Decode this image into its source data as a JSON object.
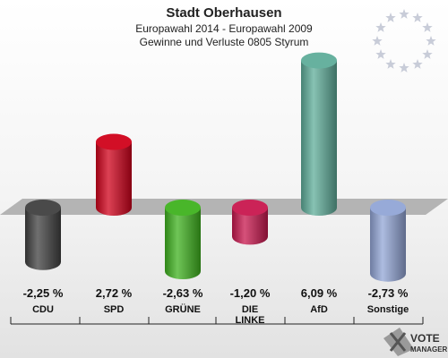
{
  "header": {
    "title": "Stadt Oberhausen",
    "subtitle": "Europawahl 2014 - Europawahl 2009",
    "subtitle2": "Gewinne und Verluste 0805 Styrum"
  },
  "logo": {
    "line1": "VOTE",
    "line2": "MANAGER",
    "icon": "ballot-x-icon"
  },
  "eu_flag": {
    "icon": "eu-stars-icon",
    "star_color": "#c8ccd8"
  },
  "chart_data": {
    "type": "bar",
    "title": "Gewinne und Verluste",
    "categories": [
      "CDU",
      "SPD",
      "GRÜNE",
      "DIE LINKE",
      "AfD",
      "Sonstige"
    ],
    "category_lines": [
      [
        "CDU"
      ],
      [
        "SPD"
      ],
      [
        "GRÜNE"
      ],
      [
        "DIE",
        "LINKE"
      ],
      [
        "AfD"
      ],
      [
        "Sonstige"
      ]
    ],
    "values": [
      -2.25,
      2.72,
      -2.63,
      -1.2,
      6.09,
      -2.73
    ],
    "value_labels": [
      "-2,25 %",
      "2,72 %",
      "-2,63 %",
      "-1,20 %",
      "6,09 %",
      "-2,73 %"
    ],
    "colors": [
      "#404040",
      "#d0021b",
      "#3fb21f",
      "#c8174e",
      "#5fad9a",
      "#92a5d6"
    ],
    "unit": "%",
    "baseline": 0
  }
}
